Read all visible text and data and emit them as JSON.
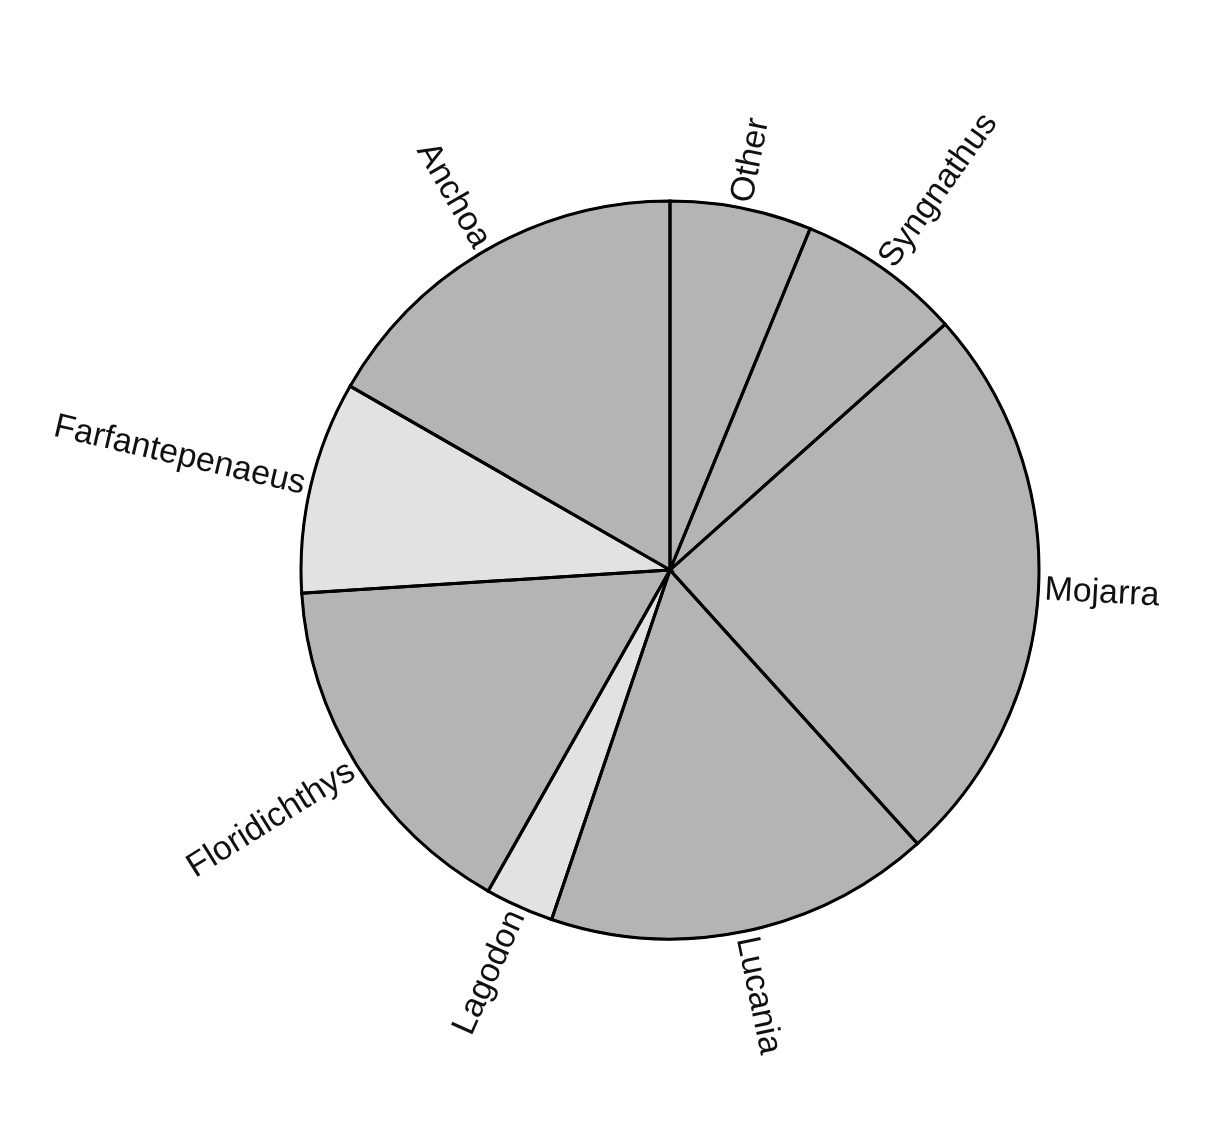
{
  "chart_data": {
    "type": "pie",
    "categories": [
      "Other",
      "Syngnathus",
      "Mojarra",
      "Lucania",
      "Lagodon",
      "Floridichthys",
      "Farfantepenaeus",
      "Anchoa"
    ],
    "values": [
      6.2,
      7.2,
      24.9,
      16.9,
      3.0,
      15.8,
      9.3,
      16.7
    ],
    "colors": [
      "#b4b4b4",
      "#b4b4b4",
      "#b4b4b4",
      "#b4b4b4",
      "#e2e2e2",
      "#b4b4b4",
      "#e2e2e2",
      "#b4b4b4"
    ],
    "legend": false
  }
}
